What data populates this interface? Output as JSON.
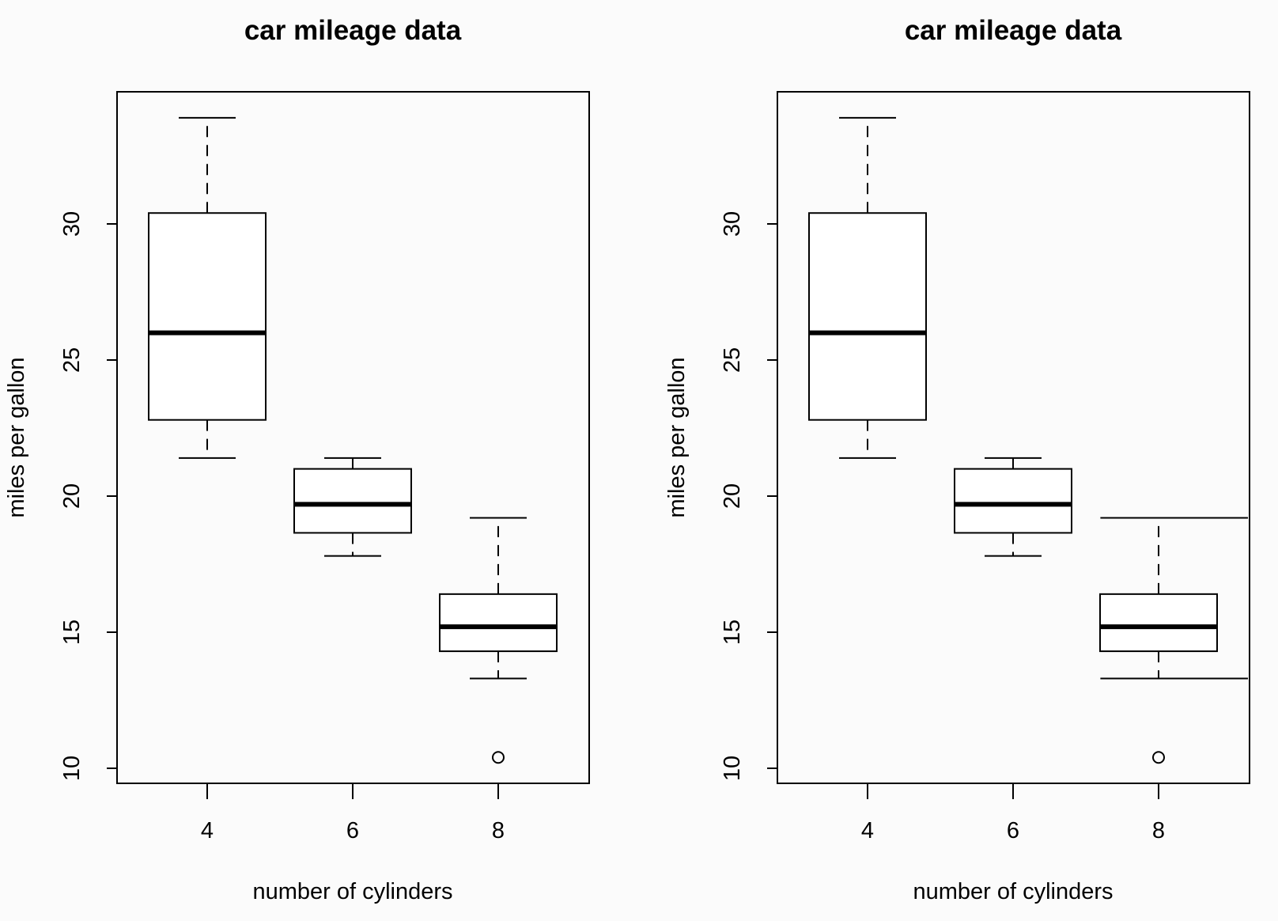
{
  "chart_data": [
    {
      "type": "boxplot",
      "title": "car mileage data",
      "xlabel": "number of cylinders",
      "ylabel": "miles per gallon",
      "categories": [
        "4",
        "6",
        "8"
      ],
      "ylim": [
        9.5,
        34.9
      ],
      "yticks": [
        "10",
        "15",
        "20",
        "25",
        "30"
      ],
      "boxes": [
        {
          "min": 21.4,
          "q1": 22.8,
          "median": 26.0,
          "q3": 30.4,
          "max": 33.9,
          "outliers": []
        },
        {
          "min": 17.8,
          "q1": 18.65,
          "median": 19.7,
          "q3": 21.0,
          "max": 21.4,
          "outliers": []
        },
        {
          "min": 13.3,
          "q1": 14.3,
          "median": 15.2,
          "q3": 16.4,
          "max": 19.2,
          "outliers": [
            10.4
          ]
        }
      ],
      "reference_lines": []
    },
    {
      "type": "boxplot",
      "title": "car mileage data",
      "xlabel": "number of cylinders",
      "ylabel": "miles per gallon",
      "categories": [
        "4",
        "6",
        "8"
      ],
      "ylim": [
        9.5,
        34.9
      ],
      "yticks": [
        "10",
        "15",
        "20",
        "25",
        "30"
      ],
      "boxes": [
        {
          "min": 21.4,
          "q1": 22.8,
          "median": 26.0,
          "q3": 30.4,
          "max": 33.9,
          "outliers": []
        },
        {
          "min": 17.8,
          "q1": 18.65,
          "median": 19.7,
          "q3": 21.0,
          "max": 21.4,
          "outliers": []
        },
        {
          "min": 13.3,
          "q1": 14.3,
          "median": 15.2,
          "q3": 16.4,
          "max": 19.2,
          "outliers": [
            10.4
          ]
        }
      ],
      "reference_lines": [
        {
          "y": 19.2,
          "from_category_offset": -0.8
        },
        {
          "y": 13.3,
          "from_category_offset": -0.8
        }
      ]
    }
  ]
}
